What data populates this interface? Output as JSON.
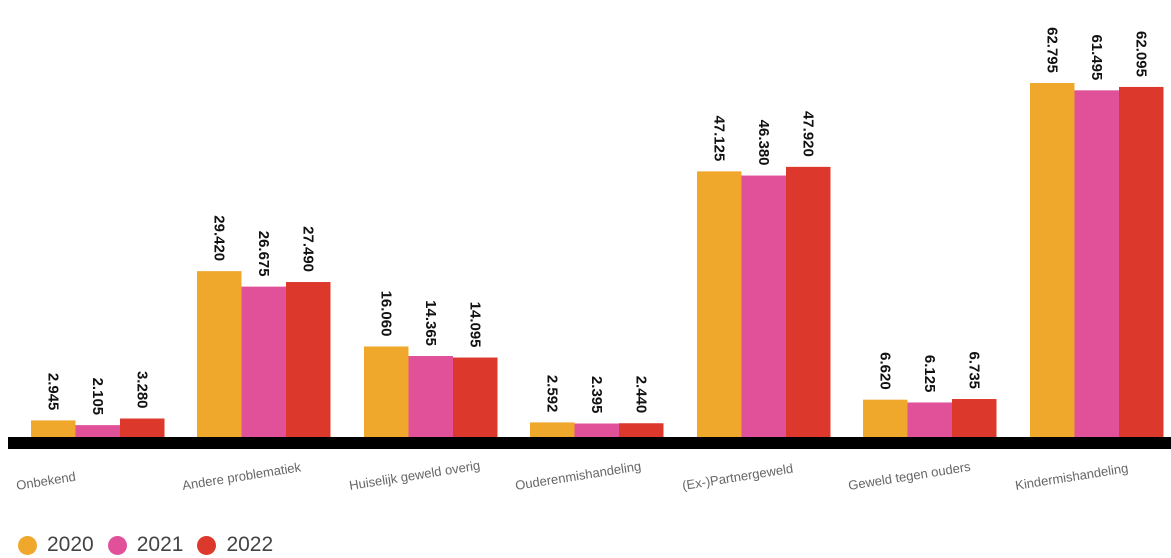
{
  "chart_data": {
    "type": "bar",
    "categories": [
      "Onbekend",
      "Andere problematiek",
      "Huiselijk geweld overig",
      "Ouderenmishandeling",
      "(Ex-)Partnergeweld",
      "Geweld tegen ouders",
      "Kindermishandeling"
    ],
    "series": [
      {
        "name": "2020",
        "color": "#f0a82c",
        "values": [
          2945,
          29420,
          16060,
          2592,
          47125,
          6620,
          62795
        ],
        "labels": [
          "2.945",
          "29.420",
          "16.060",
          "2.592",
          "47.125",
          "6.620",
          "62.795"
        ]
      },
      {
        "name": "2021",
        "color": "#e0519a",
        "values": [
          2105,
          26675,
          14365,
          2395,
          46380,
          6125,
          61495
        ],
        "labels": [
          "2.105",
          "26.675",
          "14.365",
          "2.395",
          "46.380",
          "6.125",
          "61.495"
        ]
      },
      {
        "name": "2022",
        "color": "#dd382c",
        "values": [
          3280,
          27490,
          14095,
          2440,
          47920,
          6735,
          62095
        ],
        "labels": [
          "3.280",
          "27.490",
          "14.095",
          "2.440",
          "47.920",
          "6.735",
          "62.095"
        ]
      }
    ],
    "ylim": [
      0,
      66000
    ],
    "legend_position": "bottom-left",
    "grid": false
  }
}
